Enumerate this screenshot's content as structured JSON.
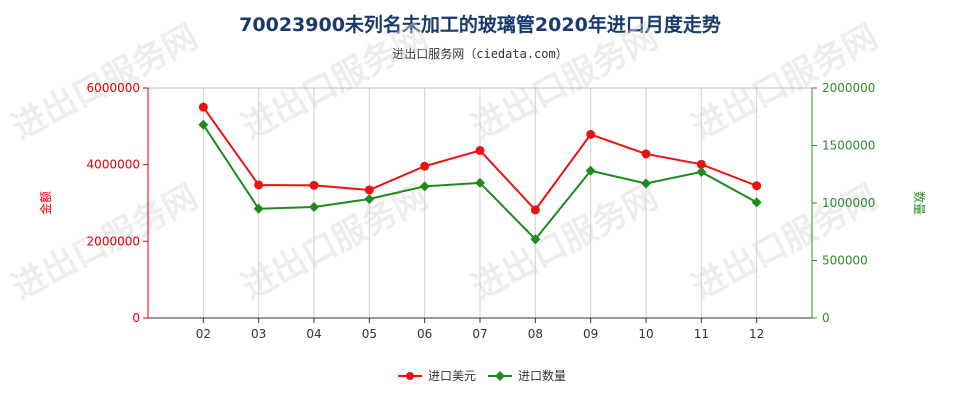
{
  "title": "70023900未列名未加工的玻璃管2020年进口月度走势",
  "subtitle": "进出口服务网（ciedata.com）",
  "watermark": "进出口服务网",
  "chart_data": {
    "type": "line",
    "categories": [
      "02",
      "03",
      "04",
      "05",
      "06",
      "07",
      "08",
      "09",
      "10",
      "11",
      "12"
    ],
    "series": [
      {
        "name": "进口美元",
        "axis": "left",
        "color": "#ee1111",
        "values": [
          5500000,
          3470000,
          3460000,
          3340000,
          3960000,
          4370000,
          2820000,
          4790000,
          4280000,
          4010000,
          3450000
        ]
      },
      {
        "name": "进口数量",
        "axis": "right",
        "color": "#1e8b1e",
        "values": [
          1680000,
          950000,
          965000,
          1035000,
          1145000,
          1175000,
          685000,
          1280000,
          1170000,
          1270000,
          1005000
        ]
      }
    ],
    "ylabel_left": "金额",
    "ylabel_right": "数量",
    "ylim_left": [
      0,
      6000000
    ],
    "ylim_right": [
      0,
      2000000
    ],
    "yticks_left": [
      "0",
      "2000000",
      "4000000",
      "6000000"
    ],
    "yticks_right": [
      "0",
      "500000",
      "1000000",
      "1500000",
      "2000000"
    ],
    "grid": "vertical",
    "legend_position": "bottom-center",
    "left_axis_color": "#e00000",
    "right_axis_color": "#2e8b2e"
  }
}
